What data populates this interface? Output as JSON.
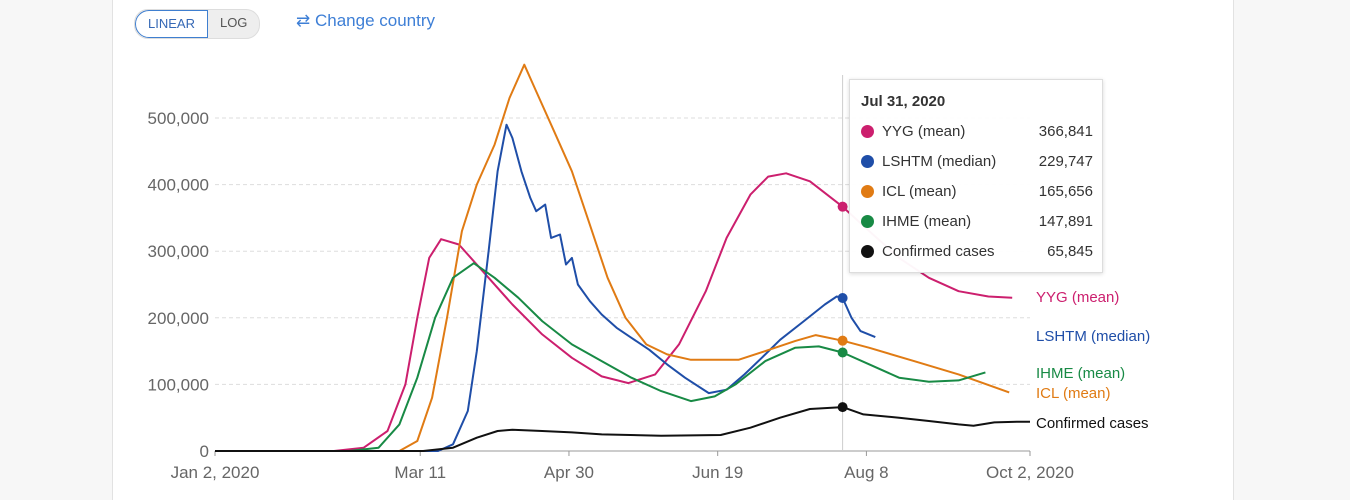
{
  "controls": {
    "linear_label": "LINEAR",
    "log_label": "LOG",
    "change_country_label": "Change country",
    "change_icon": "swap-arrows-icon"
  },
  "tooltip": {
    "date": "Jul 31, 2020",
    "rows": [
      {
        "name": "YYG (mean)",
        "value": "366,841",
        "color": "#cc1f6e"
      },
      {
        "name": "LSHTM (median)",
        "value": "229,747",
        "color": "#1f4ea8"
      },
      {
        "name": "ICL (mean)",
        "value": "165,656",
        "color": "#e07b14"
      },
      {
        "name": "IHME (mean)",
        "value": "147,891",
        "color": "#188a45"
      },
      {
        "name": "Confirmed cases",
        "value": "65,845",
        "color": "#111111"
      }
    ]
  },
  "chart_data": {
    "type": "line",
    "x_unit": "days since Jan 2, 2020",
    "xlim": [
      0,
      274
    ],
    "ylim": [
      0,
      580000
    ],
    "x_ticks": [
      {
        "day": 0,
        "label": "Jan 2, 2020"
      },
      {
        "day": 69,
        "label": "Mar 11"
      },
      {
        "day": 119,
        "label": "Apr 30"
      },
      {
        "day": 169,
        "label": "Jun 19"
      },
      {
        "day": 219,
        "label": "Aug 8"
      },
      {
        "day": 274,
        "label": "Oct 2, 2020"
      }
    ],
    "y_ticks": [
      {
        "value": 0,
        "label": "0"
      },
      {
        "value": 100000,
        "label": "100,000"
      },
      {
        "value": 200000,
        "label": "200,000"
      },
      {
        "value": 300000,
        "label": "300,000"
      },
      {
        "value": 400000,
        "label": "400,000"
      },
      {
        "value": 500000,
        "label": "500,000"
      }
    ],
    "hover_day": 211,
    "series": [
      {
        "name": "YYG (mean)",
        "color": "#cc1f6e",
        "points": [
          [
            0,
            0
          ],
          [
            40,
            0
          ],
          [
            50,
            5000
          ],
          [
            58,
            30000
          ],
          [
            64,
            100000
          ],
          [
            68,
            200000
          ],
          [
            72,
            290000
          ],
          [
            76,
            318000
          ],
          [
            82,
            310000
          ],
          [
            90,
            270000
          ],
          [
            100,
            220000
          ],
          [
            110,
            175000
          ],
          [
            120,
            140000
          ],
          [
            130,
            112000
          ],
          [
            139,
            102000
          ],
          [
            148,
            115000
          ],
          [
            156,
            160000
          ],
          [
            165,
            240000
          ],
          [
            172,
            320000
          ],
          [
            180,
            385000
          ],
          [
            186,
            412000
          ],
          [
            192,
            417000
          ],
          [
            200,
            405000
          ],
          [
            211,
            366841
          ],
          [
            220,
            330000
          ],
          [
            230,
            290000
          ],
          [
            240,
            260000
          ],
          [
            250,
            240000
          ],
          [
            260,
            232000
          ],
          [
            268,
            230000
          ]
        ]
      },
      {
        "name": "LSHTM (median)",
        "color": "#1f4ea8",
        "points": [
          [
            0,
            0
          ],
          [
            75,
            0
          ],
          [
            80,
            10000
          ],
          [
            85,
            60000
          ],
          [
            88,
            150000
          ],
          [
            92,
            300000
          ],
          [
            95,
            420000
          ],
          [
            98,
            490000
          ],
          [
            100,
            470000
          ],
          [
            103,
            420000
          ],
          [
            106,
            380000
          ],
          [
            108,
            360000
          ],
          [
            111,
            370000
          ],
          [
            113,
            320000
          ],
          [
            116,
            325000
          ],
          [
            118,
            280000
          ],
          [
            120,
            290000
          ],
          [
            122,
            250000
          ],
          [
            126,
            225000
          ],
          [
            130,
            205000
          ],
          [
            135,
            185000
          ],
          [
            140,
            170000
          ],
          [
            146,
            152000
          ],
          [
            152,
            130000
          ],
          [
            158,
            110000
          ],
          [
            166,
            87000
          ],
          [
            172,
            92000
          ],
          [
            178,
            115000
          ],
          [
            185,
            145000
          ],
          [
            190,
            167000
          ],
          [
            198,
            195000
          ],
          [
            205,
            220000
          ],
          [
            209,
            232000
          ],
          [
            211,
            229747
          ],
          [
            214,
            200000
          ],
          [
            217,
            180000
          ],
          [
            222,
            171000
          ]
        ]
      },
      {
        "name": "ICL (mean)",
        "color": "#e07b14",
        "points": [
          [
            0,
            0
          ],
          [
            62,
            0
          ],
          [
            68,
            15000
          ],
          [
            73,
            80000
          ],
          [
            78,
            200000
          ],
          [
            83,
            330000
          ],
          [
            88,
            400000
          ],
          [
            94,
            460000
          ],
          [
            99,
            530000
          ],
          [
            104,
            580000
          ],
          [
            108,
            540000
          ],
          [
            114,
            480000
          ],
          [
            120,
            420000
          ],
          [
            126,
            340000
          ],
          [
            132,
            260000
          ],
          [
            138,
            200000
          ],
          [
            145,
            160000
          ],
          [
            152,
            145000
          ],
          [
            160,
            137000
          ],
          [
            176,
            137000
          ],
          [
            185,
            150000
          ],
          [
            195,
            165000
          ],
          [
            202,
            174000
          ],
          [
            211,
            165656
          ],
          [
            220,
            155000
          ],
          [
            235,
            135000
          ],
          [
            250,
            115000
          ],
          [
            267,
            88000
          ]
        ]
      },
      {
        "name": "IHME (mean)",
        "color": "#188a45",
        "points": [
          [
            0,
            0
          ],
          [
            45,
            0
          ],
          [
            55,
            5000
          ],
          [
            62,
            40000
          ],
          [
            68,
            110000
          ],
          [
            74,
            200000
          ],
          [
            80,
            260000
          ],
          [
            87,
            282000
          ],
          [
            94,
            260000
          ],
          [
            102,
            230000
          ],
          [
            110,
            195000
          ],
          [
            120,
            160000
          ],
          [
            130,
            135000
          ],
          [
            140,
            110000
          ],
          [
            150,
            90000
          ],
          [
            160,
            75000
          ],
          [
            168,
            82000
          ],
          [
            175,
            100000
          ],
          [
            185,
            135000
          ],
          [
            195,
            155000
          ],
          [
            203,
            157000
          ],
          [
            211,
            147891
          ],
          [
            220,
            130000
          ],
          [
            230,
            110000
          ],
          [
            240,
            104000
          ],
          [
            250,
            106000
          ],
          [
            259,
            118000
          ]
        ]
      },
      {
        "name": "Confirmed cases",
        "color": "#111111",
        "points": [
          [
            0,
            0
          ],
          [
            70,
            0
          ],
          [
            80,
            5000
          ],
          [
            88,
            20000
          ],
          [
            95,
            30000
          ],
          [
            100,
            32000
          ],
          [
            110,
            30000
          ],
          [
            120,
            28000
          ],
          [
            130,
            25000
          ],
          [
            150,
            23000
          ],
          [
            170,
            24000
          ],
          [
            180,
            35000
          ],
          [
            190,
            50000
          ],
          [
            200,
            63000
          ],
          [
            211,
            65845
          ],
          [
            218,
            55000
          ],
          [
            230,
            50000
          ],
          [
            240,
            45000
          ],
          [
            250,
            40000
          ],
          [
            255,
            38000
          ],
          [
            262,
            43000
          ],
          [
            270,
            44000
          ],
          [
            274,
            44000
          ]
        ]
      }
    ]
  }
}
